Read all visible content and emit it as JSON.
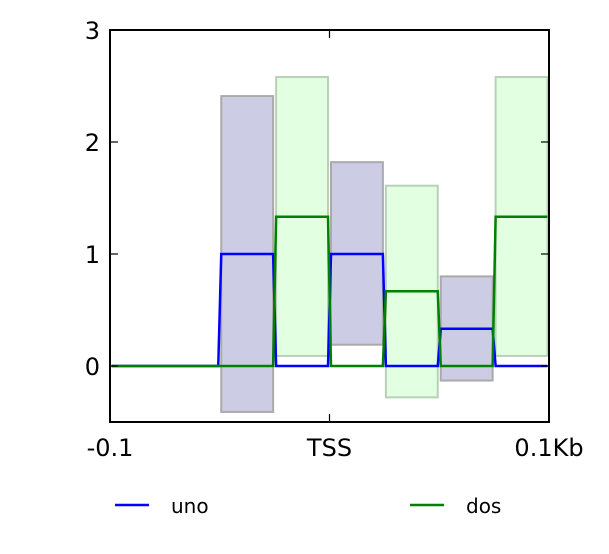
{
  "chart_data": {
    "type": "line",
    "title": "",
    "xlabel": "",
    "ylabel": "",
    "xlim": [
      -0.1,
      0.1
    ],
    "ylim": [
      -0.5,
      3
    ],
    "grid": false,
    "legend_placement": "bottom",
    "x_ticks": [
      {
        "value": -0.1,
        "label": "-0.1"
      },
      {
        "value": 0,
        "label": "TSS"
      },
      {
        "value": 0.1,
        "label": "0.1Kb"
      }
    ],
    "y_ticks": [
      {
        "value": 0,
        "label": "0"
      },
      {
        "value": 1,
        "label": "1"
      },
      {
        "value": 2,
        "label": "2"
      },
      {
        "value": 3,
        "label": "3"
      }
    ],
    "bin_edges": [
      -0.1,
      -0.075,
      -0.05,
      -0.025,
      0,
      0.025,
      0.05,
      0.075,
      0.1
    ],
    "series": [
      {
        "name": "uno",
        "color": "#0000ff",
        "band_fill": "#ccccе4",
        "values": [
          0,
          0,
          1,
          0,
          1,
          0,
          0.333,
          0
        ],
        "band_upper": [
          0,
          0,
          2.41,
          0,
          1.82,
          0,
          0.8,
          0
        ],
        "band_lower": [
          0,
          0,
          -0.41,
          0,
          0.19,
          0,
          -0.13,
          0
        ]
      },
      {
        "name": "dos",
        "color": "#008000",
        "band_fill": "#e2ffe2",
        "values": [
          0,
          0,
          0,
          1.333,
          0,
          0.667,
          0,
          1.333
        ],
        "band_upper": [
          0,
          0,
          0,
          2.58,
          0,
          1.61,
          0,
          2.58
        ],
        "band_lower": [
          0,
          0,
          0,
          0.09,
          0,
          -0.28,
          0,
          0.09
        ]
      }
    ]
  }
}
